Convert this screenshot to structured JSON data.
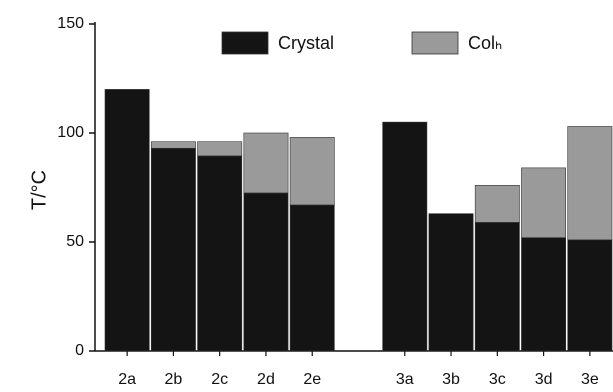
{
  "chart_data": {
    "type": "stacked_bar",
    "ylabel": "T/°C",
    "categories": [
      "2a",
      "2b",
      "2c",
      "2d",
      "2e",
      null,
      "3a",
      "3b",
      "3c",
      "3d",
      "3e"
    ],
    "series": [
      {
        "name": "Crystal",
        "color": "#141414",
        "values": [
          120,
          93,
          89.5,
          72.5,
          67,
          null,
          105,
          63,
          59,
          52,
          51
        ]
      },
      {
        "name": "Colₕ",
        "color": "#9a9a9a",
        "values": [
          0,
          3,
          6.5,
          27.5,
          31,
          null,
          0,
          0,
          17,
          32,
          52
        ]
      }
    ],
    "ylim": [
      0,
      150
    ],
    "yticks": [
      0,
      50,
      100,
      150
    ],
    "grid": false,
    "legend": "top"
  }
}
